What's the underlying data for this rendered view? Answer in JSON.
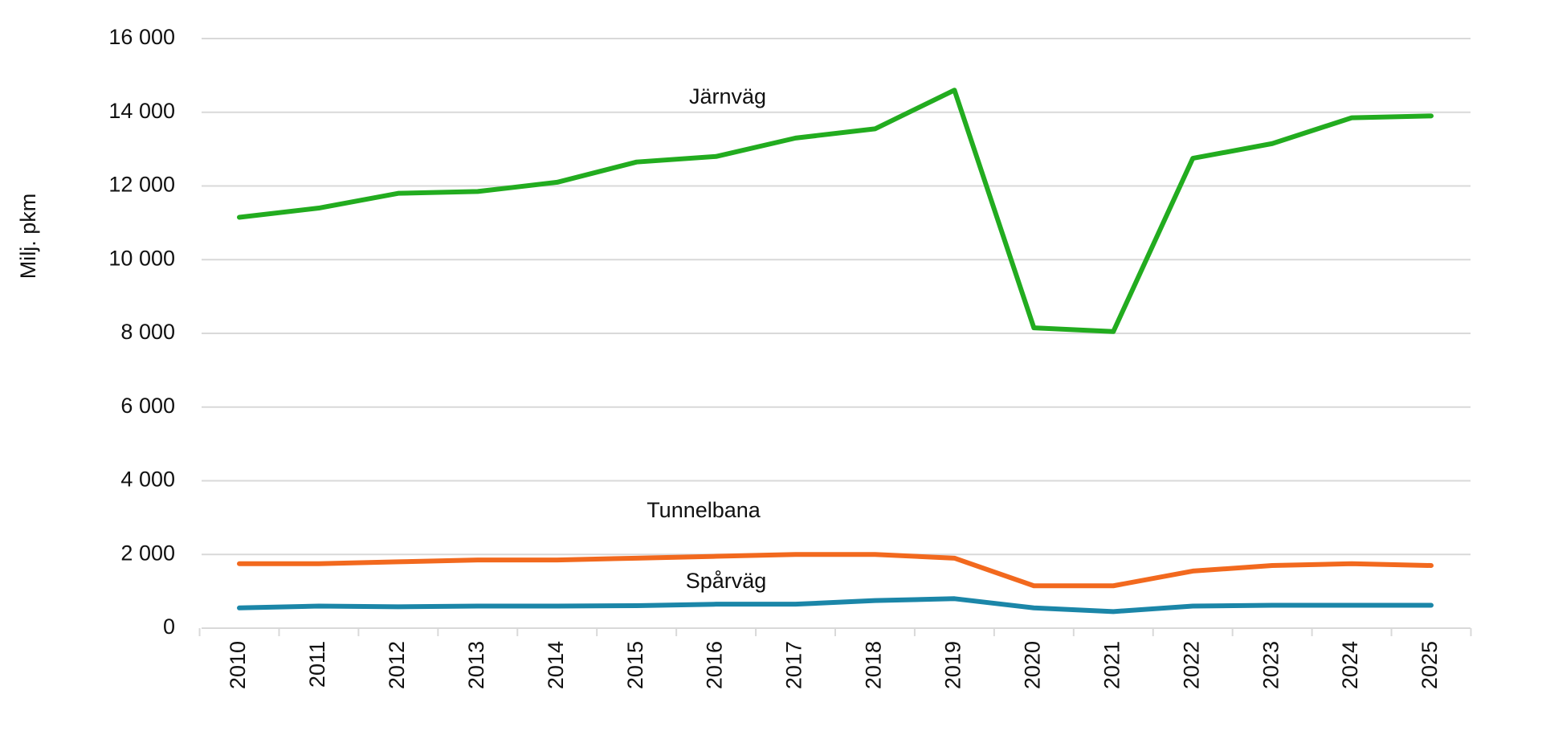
{
  "chart_data": {
    "type": "line",
    "y_label": "Milj. pkm",
    "categories": [
      "2010",
      "2011",
      "2012",
      "2013",
      "2014",
      "2015",
      "2016",
      "2017",
      "2018",
      "2019",
      "2020",
      "2021",
      "2022",
      "2023",
      "2024",
      "2025"
    ],
    "series": [
      {
        "name": "Järnväg",
        "color": "#22ac1f",
        "values": [
          11150,
          11400,
          11800,
          11850,
          12100,
          12650,
          12800,
          13300,
          13550,
          14600,
          8150,
          8050,
          12750,
          13150,
          13850,
          13900
        ]
      },
      {
        "name": "Tunnelbana",
        "color": "#f2691e",
        "values": [
          1750,
          1750,
          1800,
          1850,
          1850,
          1900,
          1950,
          2000,
          2000,
          1900,
          1150,
          1150,
          1550,
          1700,
          1750,
          1700
        ]
      },
      {
        "name": "Spårväg",
        "color": "#1b86a8",
        "values": [
          550,
          600,
          580,
          600,
          600,
          610,
          650,
          650,
          750,
          800,
          550,
          450,
          600,
          620,
          620,
          620
        ]
      }
    ],
    "ylim": [
      0,
      16000
    ],
    "yticks": [
      0,
      {
        "value": 2000,
        "label": "2 000"
      },
      {
        "value": 4000,
        "label": "4 000"
      },
      {
        "value": 6000,
        "label": "6 000"
      },
      {
        "value": 8000,
        "label": "8 000"
      },
      {
        "value": 10000,
        "label": "10 000"
      },
      {
        "value": 12000,
        "label": "12 000"
      },
      {
        "value": 14000,
        "label": "14 000"
      },
      {
        "value": 16000,
        "label": "16 000"
      }
    ],
    "grid": true
  }
}
